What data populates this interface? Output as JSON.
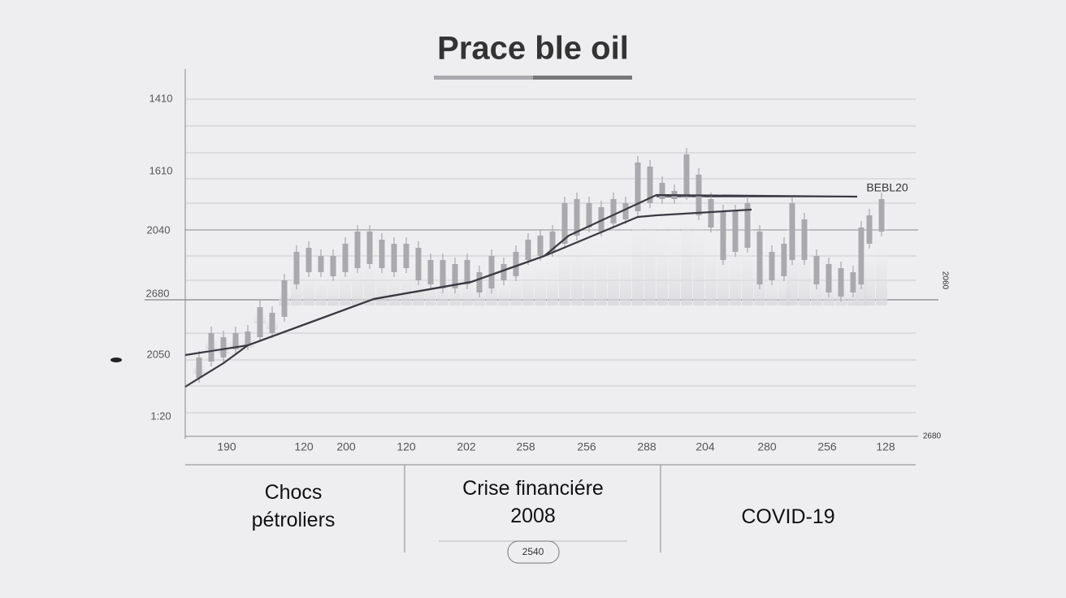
{
  "chart_data": {
    "type": "candlestick",
    "title": "Prace ble oil",
    "y_axis_labels": [
      "1410",
      "1610",
      "2040",
      "2680",
      "2050",
      "1:20"
    ],
    "right_labels": [
      "BEBL20",
      "2060",
      "2680"
    ],
    "xlim": [
      0,
      899
    ],
    "ylim": [
      0,
      436
    ],
    "xticks": [
      {
        "value": 51,
        "label": "190"
      },
      {
        "value": 146,
        "label": "120"
      },
      {
        "value": 198,
        "label": "200"
      },
      {
        "value": 272,
        "label": "120"
      },
      {
        "value": 346,
        "label": "202"
      },
      {
        "value": 419,
        "label": "258"
      },
      {
        "value": 494,
        "label": "256"
      },
      {
        "value": 568,
        "label": "288"
      },
      {
        "value": 640,
        "label": "204"
      },
      {
        "value": 716,
        "label": "280"
      },
      {
        "value": 790,
        "label": "256"
      },
      {
        "value": 862,
        "label": "128"
      }
    ],
    "candle_color": "#a9a9ae",
    "candles": {
      "x": [
        17,
        32,
        47,
        62,
        77,
        92,
        107,
        122,
        137,
        152,
        167,
        182,
        197,
        212,
        227,
        242,
        257,
        272,
        287,
        302,
        317,
        332,
        347,
        362,
        377,
        392,
        407,
        422,
        437,
        452,
        467,
        482,
        497,
        512,
        527,
        542,
        557,
        572,
        587,
        602,
        617,
        632,
        647,
        662,
        677,
        692,
        707,
        722,
        737,
        747,
        762,
        777,
        792,
        807,
        822,
        832,
        842,
        857
      ],
      "high": [
        96,
        126,
        121,
        126,
        128,
        158,
        151,
        191,
        226,
        231,
        221,
        221,
        236,
        251,
        251,
        241,
        236,
        236,
        231,
        216,
        216,
        211,
        216,
        201,
        221,
        211,
        226,
        241,
        246,
        251,
        286,
        291,
        286,
        281,
        291,
        286,
        336,
        331,
        311,
        301,
        346,
        321,
        291,
        276,
        276,
        286,
        251,
        226,
        236,
        286,
        266,
        221,
        211,
        206,
        201,
        256,
        271,
        291
      ],
      "low": [
        71,
        91,
        96,
        106,
        111,
        121,
        126,
        146,
        186,
        201,
        201,
        196,
        201,
        206,
        211,
        206,
        201,
        206,
        191,
        186,
        181,
        181,
        186,
        176,
        181,
        191,
        196,
        216,
        221,
        226,
        236,
        246,
        256,
        251,
        261,
        266,
        276,
        286,
        291,
        291,
        296,
        271,
        256,
        216,
        226,
        231,
        186,
        191,
        196,
        216,
        216,
        186,
        176,
        171,
        176,
        186,
        236,
        251
      ]
    },
    "lines": [
      {
        "color": "#3a3a42",
        "x": [
          0,
          47,
          77,
          232,
          352,
          442,
          557,
          580,
          697
        ],
        "values": [
          60,
          89,
          111,
          168,
          189,
          221,
          269,
          271,
          278
        ]
      },
      {
        "color": "#3a3a42",
        "x": [
          0,
          77,
          232,
          352,
          442,
          472,
          580,
          827
        ],
        "values": [
          99,
          111,
          168,
          189,
          221,
          246,
          296,
          294
        ]
      }
    ],
    "periods": [
      "Chocs\npétroliers",
      "Crise financiére\n2008",
      "COVID-19"
    ],
    "badge": "2540"
  }
}
